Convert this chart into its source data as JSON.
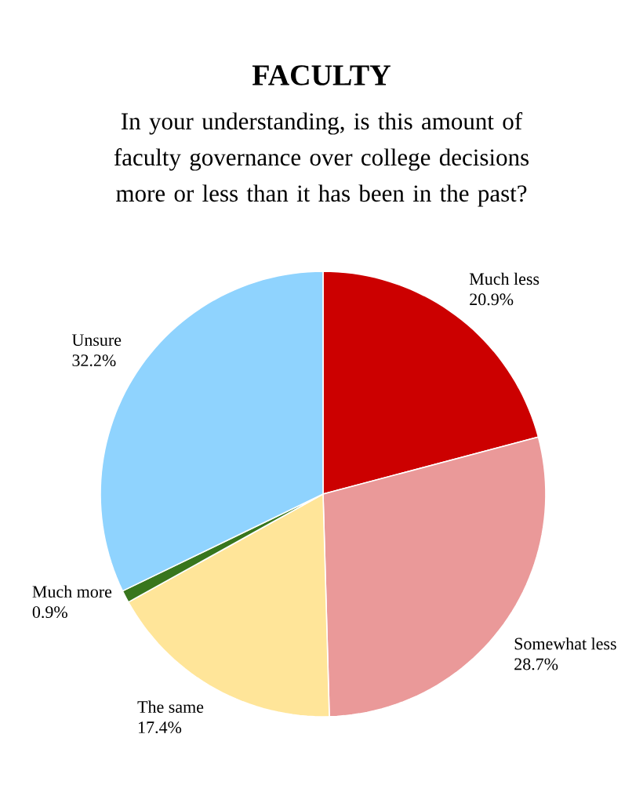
{
  "chart_data": {
    "type": "pie",
    "title": "FACULTY",
    "subtitle": "In your understanding, is this amount of faculty governance over college decisions more or less than it has been in the past?",
    "categories": [
      "Much less",
      "Somewhat less",
      "The same",
      "Much more",
      "Unsure"
    ],
    "values": [
      20.9,
      28.7,
      17.4,
      0.9,
      32.2
    ],
    "value_labels": [
      "20.9%",
      "28.7%",
      "17.4%",
      "0.9%",
      "32.2%"
    ],
    "colors": [
      "#cc0000",
      "#ea9999",
      "#ffe599",
      "#38761d",
      "#8fd3fe"
    ]
  }
}
